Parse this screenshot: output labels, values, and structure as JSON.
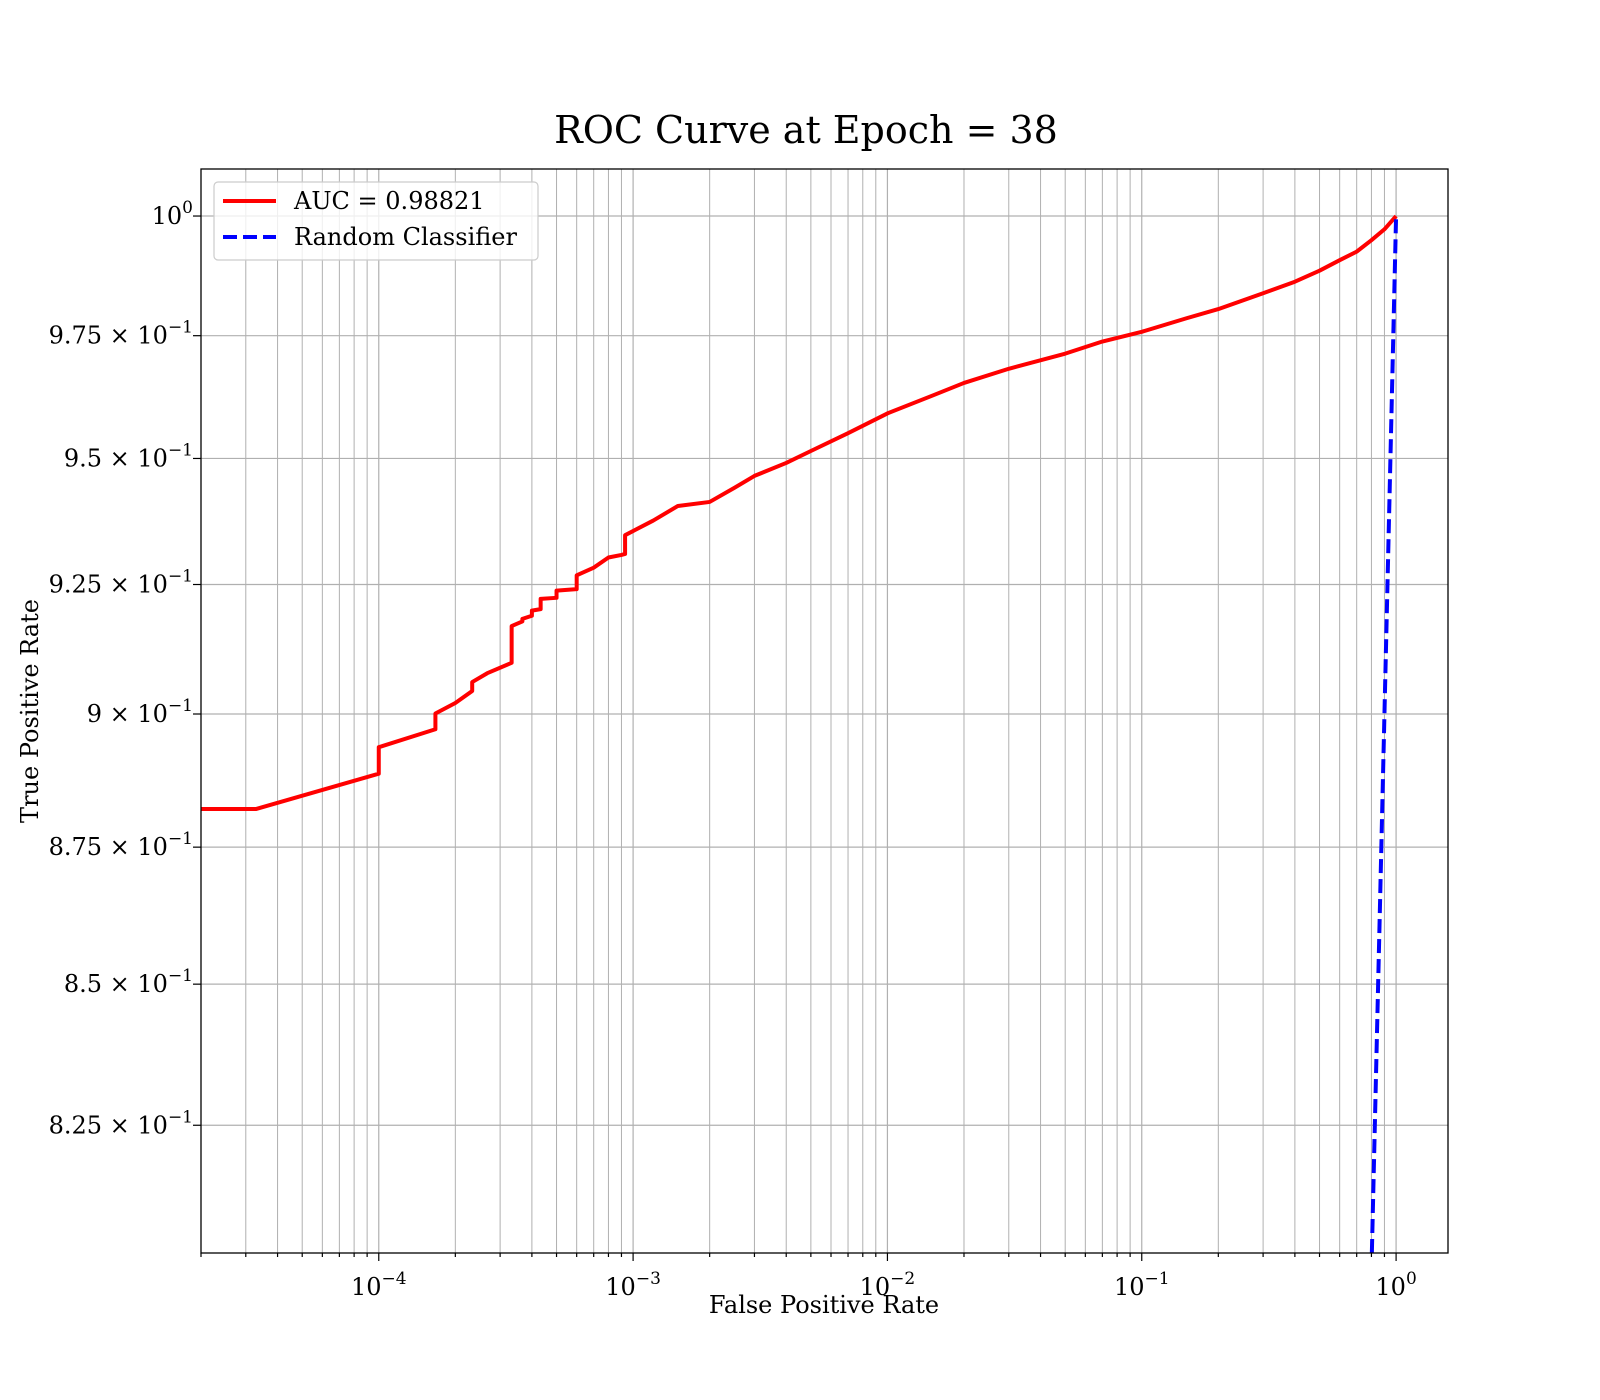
{
  "chart_data": {
    "type": "line",
    "title": "ROC Curve at Epoch = 38",
    "xlabel": "False Positive Rate",
    "ylabel": "True Positive Rate",
    "x_scale": "log",
    "y_scale": "log",
    "xlim": [
      2e-05,
      1.6
    ],
    "ylim": [
      0.803,
      1.01
    ],
    "grid": true,
    "grid_which": "both",
    "legend_position": "top-left",
    "x_ticks": [
      {
        "value": 0.0001,
        "label_base": "10",
        "label_exp": "−4"
      },
      {
        "value": 0.001,
        "label_base": "10",
        "label_exp": "−3"
      },
      {
        "value": 0.01,
        "label_base": "10",
        "label_exp": "−2"
      },
      {
        "value": 0.1,
        "label_base": "10",
        "label_exp": "−1"
      },
      {
        "value": 1,
        "label_base": "10",
        "label_exp": "0"
      }
    ],
    "y_ticks": [
      {
        "value": 1.0,
        "label_base": "10",
        "label_exp": "0"
      },
      {
        "value": 0.975,
        "label_base": "9.75 × 10",
        "label_exp": "−1"
      },
      {
        "value": 0.95,
        "label_base": "9.5 × 10",
        "label_exp": "−1"
      },
      {
        "value": 0.925,
        "label_base": "9.25 × 10",
        "label_exp": "−1"
      },
      {
        "value": 0.9,
        "label_base": "9 × 10",
        "label_exp": "−1"
      },
      {
        "value": 0.875,
        "label_base": "8.75 × 10",
        "label_exp": "−1"
      },
      {
        "value": 0.85,
        "label_base": "8.5 × 10",
        "label_exp": "−1"
      },
      {
        "value": 0.825,
        "label_base": "8.25 × 10",
        "label_exp": "−1"
      }
    ],
    "series": [
      {
        "name": "AUC = 0.98821",
        "color": "#ff0000",
        "style": "solid",
        "x": [
          2e-05,
          3.3e-05,
          0.0001,
          0.0001,
          0.000167,
          0.000167,
          0.0002,
          0.000233,
          0.000233,
          0.000267,
          0.000333,
          0.000333,
          0.000367,
          0.000367,
          0.0004,
          0.0004,
          0.000433,
          0.000433,
          0.0005,
          0.0005,
          0.0006,
          0.0006,
          0.0007,
          0.0008,
          0.0009,
          0.00093,
          0.00093,
          0.0012,
          0.0015,
          0.002,
          0.0025,
          0.003,
          0.004,
          0.005,
          0.007,
          0.01,
          0.015,
          0.02,
          0.03,
          0.05,
          0.07,
          0.1,
          0.15,
          0.2,
          0.3,
          0.4,
          0.5,
          0.6,
          0.7,
          0.8,
          0.9,
          1.0
        ],
        "y": [
          0.8821,
          0.8821,
          0.8887,
          0.8937,
          0.8971,
          0.9001,
          0.9021,
          0.9044,
          0.9061,
          0.9078,
          0.9098,
          0.9169,
          0.9178,
          0.9183,
          0.9189,
          0.9199,
          0.9202,
          0.9222,
          0.9224,
          0.9238,
          0.9241,
          0.9268,
          0.9283,
          0.9303,
          0.9308,
          0.931,
          0.9347,
          0.9376,
          0.9405,
          0.9413,
          0.9441,
          0.9465,
          0.9491,
          0.9515,
          0.9551,
          0.9591,
          0.9627,
          0.9653,
          0.9682,
          0.9713,
          0.9738,
          0.9758,
          0.9786,
          0.9805,
          0.9838,
          0.9862,
          0.9885,
          0.9907,
          0.9925,
          0.9949,
          0.9972,
          1.0
        ]
      },
      {
        "name": "Random Classifier",
        "color": "#0000ff",
        "style": "dashed",
        "x": [
          0,
          1
        ],
        "y": [
          0,
          1
        ]
      }
    ]
  }
}
